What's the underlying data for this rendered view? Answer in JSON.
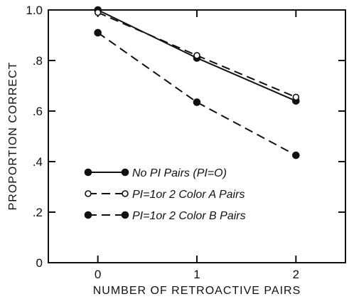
{
  "chart_data": {
    "type": "line",
    "title": "",
    "xlabel": "NUMBER OF RETROACTIVE PAIRS",
    "ylabel": "PROPORTION CORRECT",
    "x": [
      0,
      1,
      2
    ],
    "xticks": [
      "0",
      "1",
      "2"
    ],
    "xlim": [
      -0.5,
      2.5
    ],
    "ylim": [
      0,
      1.0
    ],
    "yticks": [
      "0",
      ".2",
      ".4",
      ".6",
      ".8",
      "1.0"
    ],
    "ytick_values": [
      0,
      0.2,
      0.4,
      0.6,
      0.8,
      1.0
    ],
    "grid": false,
    "legend_position": "bottom-left",
    "series": [
      {
        "name": "No PI Pairs (PI=O)",
        "values": [
          1.0,
          0.81,
          0.64
        ],
        "line": "solid",
        "marker": "filled"
      },
      {
        "name": "PI=1or 2 Color A Pairs",
        "values": [
          0.99,
          0.82,
          0.655
        ],
        "line": "dashed",
        "marker": "open"
      },
      {
        "name": "PI=1or 2 Color B Pairs",
        "values": [
          0.91,
          0.635,
          0.425
        ],
        "line": "dashed",
        "marker": "filled"
      }
    ]
  }
}
